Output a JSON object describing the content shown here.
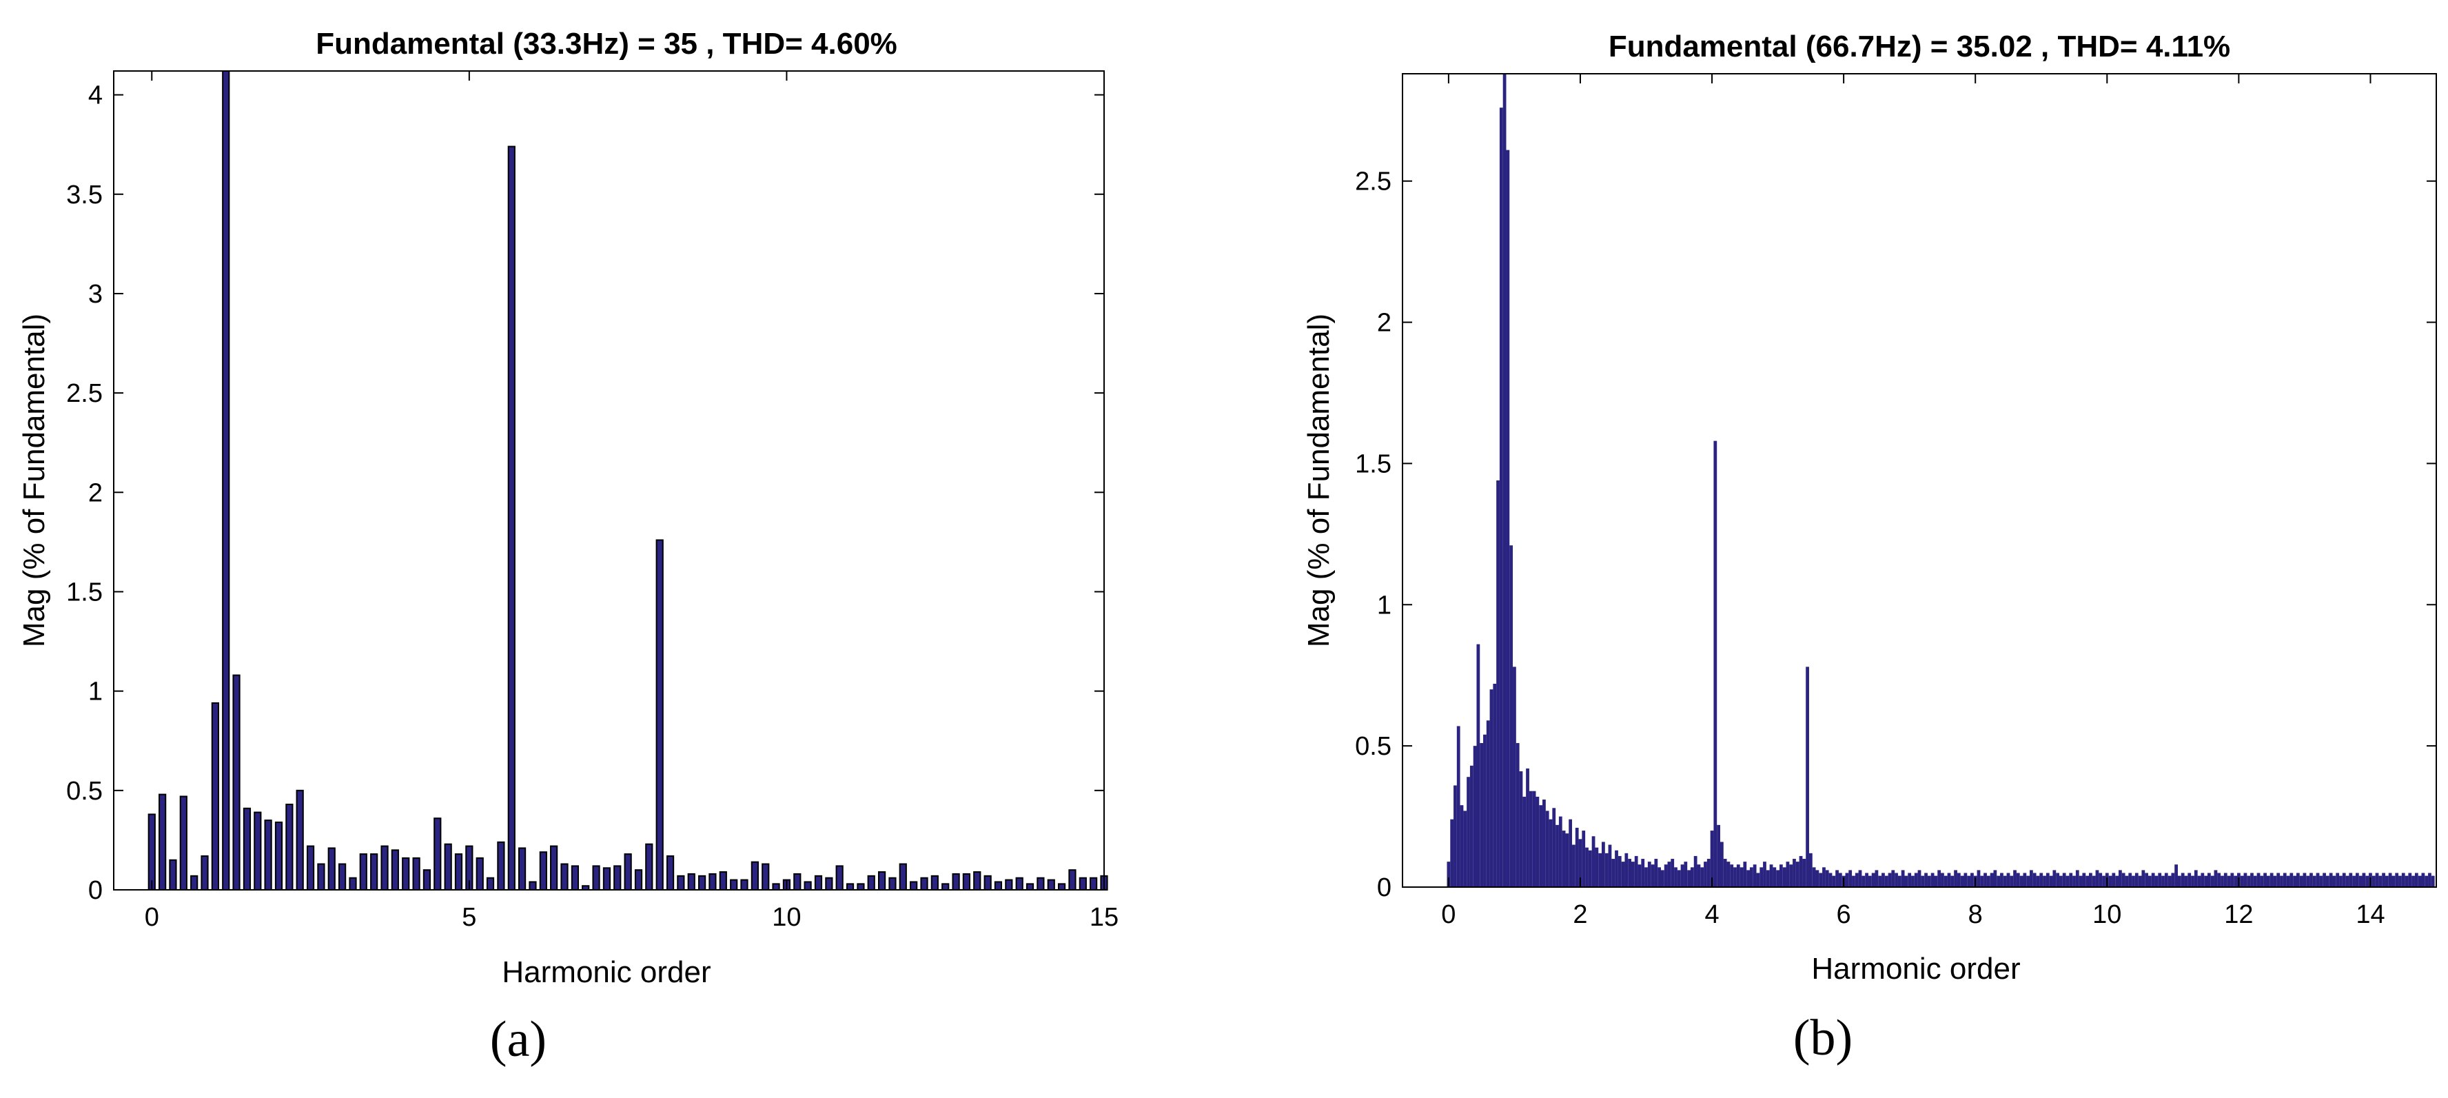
{
  "chart_data": [
    {
      "panel_label": "(a)",
      "type": "bar",
      "title": "Fundamental (33.3Hz) = 35 , THD= 4.60%",
      "xlabel": "Harmonic order",
      "ylabel": "Mag (% of Fundamental)",
      "xlim": [
        -0.6,
        15
      ],
      "ylim": [
        0,
        4.12
      ],
      "xticks": [
        0,
        5,
        10,
        15
      ],
      "xtick_labels": [
        "0",
        "5",
        "10",
        "15"
      ],
      "yticks": [
        0,
        0.5,
        1,
        1.5,
        2,
        2.5,
        3,
        3.5,
        4
      ],
      "ytick_labels": [
        "0",
        "0.5",
        "1",
        "1.5",
        "2",
        "2.5",
        "3",
        "3.5",
        "4"
      ],
      "bar_color": "#2a2380",
      "bar_edge": "#000000",
      "bar_width": 0.1,
      "series": [
        {
          "name": "spectrum",
          "x": [
            0,
            0.167,
            0.333,
            0.5,
            0.667,
            0.833,
            1.0,
            1.167,
            1.333,
            1.5,
            1.667,
            1.833,
            2.0,
            2.167,
            2.333,
            2.5,
            2.667,
            2.833,
            3.0,
            3.167,
            3.333,
            3.5,
            3.667,
            3.833,
            4.0,
            4.167,
            4.333,
            4.5,
            4.667,
            4.833,
            5.0,
            5.167,
            5.333,
            5.5,
            5.667,
            5.833,
            6.0,
            6.167,
            6.333,
            6.5,
            6.667,
            6.833,
            7.0,
            7.167,
            7.333,
            7.5,
            7.667,
            7.833,
            8.0,
            8.167,
            8.333,
            8.5,
            8.667,
            8.833,
            9.0,
            9.167,
            9.333,
            9.5,
            9.667,
            9.833,
            10.0,
            10.167,
            10.333,
            10.5,
            10.667,
            10.833,
            11.0,
            11.167,
            11.333,
            11.5,
            11.667,
            11.833,
            12.0,
            12.167,
            12.333,
            12.5,
            12.667,
            12.833,
            13.0,
            13.167,
            13.333,
            13.5,
            13.667,
            13.833,
            14.0,
            14.167,
            14.333,
            14.5,
            14.667,
            14.833,
            15.0
          ],
          "values": [
            0.38,
            0.48,
            0.15,
            0.47,
            0.07,
            0.17,
            0.94,
            4.12,
            1.08,
            0.41,
            0.39,
            0.35,
            0.34,
            0.43,
            0.5,
            0.22,
            0.13,
            0.21,
            0.13,
            0.06,
            0.18,
            0.18,
            0.22,
            0.2,
            0.16,
            0.16,
            0.1,
            0.36,
            0.23,
            0.18,
            0.22,
            0.16,
            0.06,
            0.24,
            3.74,
            0.21,
            0.04,
            0.19,
            0.22,
            0.13,
            0.12,
            0.02,
            0.12,
            0.11,
            0.12,
            0.18,
            0.1,
            0.23,
            1.76,
            0.17,
            0.07,
            0.08,
            0.07,
            0.08,
            0.09,
            0.05,
            0.05,
            0.14,
            0.13,
            0.03,
            0.05,
            0.08,
            0.04,
            0.07,
            0.06,
            0.12,
            0.03,
            0.03,
            0.07,
            0.09,
            0.06,
            0.13,
            0.04,
            0.06,
            0.07,
            0.03,
            0.08,
            0.08,
            0.09,
            0.07,
            0.04,
            0.05,
            0.06,
            0.03,
            0.06,
            0.05,
            0.03,
            0.1,
            0.06,
            0.06,
            0.07
          ]
        }
      ]
    },
    {
      "panel_label": "(b)",
      "type": "bar",
      "title": "Fundamental (66.7Hz) = 35.02 , THD= 4.11%",
      "xlabel": "Harmonic order",
      "ylabel": "Mag (% of Fundamental)",
      "xlim": [
        -0.7,
        15
      ],
      "ylim": [
        0,
        2.88
      ],
      "xticks": [
        0,
        2,
        4,
        6,
        8,
        10,
        12,
        14
      ],
      "xtick_labels": [
        "0",
        "2",
        "4",
        "6",
        "8",
        "10",
        "12",
        "14"
      ],
      "yticks": [
        0,
        0.5,
        1,
        1.5,
        2,
        2.5
      ],
      "ytick_labels": [
        "0",
        "0.5",
        "1",
        "1.5",
        "2",
        "2.5"
      ],
      "bar_color": "#2a2380",
      "bar_width": 0.05,
      "series": [
        {
          "name": "spectrum",
          "x0": 0,
          "dx": 0.05,
          "values": [
            0.09,
            0.24,
            0.36,
            0.57,
            0.29,
            0.27,
            0.39,
            0.43,
            0.5,
            0.86,
            0.51,
            0.54,
            0.59,
            0.7,
            0.72,
            1.44,
            2.76,
            2.88,
            2.61,
            1.21,
            0.78,
            0.51,
            0.41,
            0.32,
            0.42,
            0.34,
            0.34,
            0.32,
            0.29,
            0.31,
            0.27,
            0.24,
            0.28,
            0.22,
            0.25,
            0.2,
            0.19,
            0.24,
            0.15,
            0.21,
            0.17,
            0.2,
            0.14,
            0.13,
            0.18,
            0.14,
            0.12,
            0.16,
            0.12,
            0.15,
            0.1,
            0.13,
            0.11,
            0.09,
            0.12,
            0.1,
            0.09,
            0.11,
            0.08,
            0.1,
            0.07,
            0.09,
            0.08,
            0.1,
            0.07,
            0.06,
            0.08,
            0.09,
            0.1,
            0.07,
            0.06,
            0.08,
            0.09,
            0.06,
            0.07,
            0.11,
            0.08,
            0.07,
            0.09,
            0.1,
            0.2,
            1.58,
            0.22,
            0.16,
            0.1,
            0.09,
            0.08,
            0.07,
            0.08,
            0.07,
            0.09,
            0.06,
            0.07,
            0.08,
            0.05,
            0.07,
            0.09,
            0.06,
            0.08,
            0.07,
            0.06,
            0.08,
            0.07,
            0.09,
            0.08,
            0.1,
            0.09,
            0.11,
            0.1,
            0.78,
            0.12,
            0.07,
            0.06,
            0.05,
            0.07,
            0.06,
            0.05,
            0.04,
            0.06,
            0.05,
            0.04,
            0.05,
            0.06,
            0.04,
            0.05,
            0.06,
            0.04,
            0.05,
            0.04,
            0.05,
            0.06,
            0.04,
            0.05,
            0.04,
            0.05,
            0.06,
            0.05,
            0.04,
            0.06,
            0.04,
            0.05,
            0.04,
            0.05,
            0.06,
            0.04,
            0.05,
            0.04,
            0.05,
            0.04,
            0.06,
            0.05,
            0.04,
            0.05,
            0.04,
            0.06,
            0.05,
            0.04,
            0.05,
            0.04,
            0.05,
            0.04,
            0.06,
            0.04,
            0.05,
            0.04,
            0.05,
            0.06,
            0.04,
            0.05,
            0.04,
            0.05,
            0.04,
            0.06,
            0.05,
            0.04,
            0.05,
            0.04,
            0.06,
            0.05,
            0.04,
            0.05,
            0.04,
            0.05,
            0.04,
            0.06,
            0.05,
            0.04,
            0.05,
            0.04,
            0.05,
            0.04,
            0.06,
            0.04,
            0.05,
            0.04,
            0.05,
            0.04,
            0.06,
            0.05,
            0.04,
            0.05,
            0.04,
            0.05,
            0.04,
            0.06,
            0.05,
            0.04,
            0.05,
            0.04,
            0.05,
            0.04,
            0.06,
            0.05,
            0.04,
            0.05,
            0.04,
            0.05,
            0.04,
            0.05,
            0.04,
            0.05,
            0.08,
            0.04,
            0.05,
            0.04,
            0.05,
            0.04,
            0.06,
            0.04,
            0.05,
            0.04,
            0.05,
            0.04,
            0.06,
            0.05,
            0.04,
            0.05,
            0.04,
            0.05,
            0.04,
            0.05,
            0.04,
            0.05,
            0.04,
            0.05,
            0.04,
            0.05,
            0.04,
            0.05,
            0.04,
            0.05,
            0.04,
            0.05,
            0.04,
            0.05,
            0.04,
            0.05,
            0.04,
            0.05,
            0.04,
            0.05,
            0.04,
            0.05,
            0.04,
            0.05,
            0.04,
            0.05,
            0.04,
            0.05,
            0.04,
            0.05,
            0.04,
            0.05,
            0.04,
            0.05,
            0.04,
            0.05,
            0.04,
            0.05,
            0.04,
            0.05,
            0.04,
            0.05,
            0.04,
            0.05,
            0.04,
            0.05,
            0.04,
            0.05,
            0.04,
            0.05,
            0.04,
            0.05,
            0.04,
            0.05,
            0.04,
            0.05,
            0.04,
            0.05,
            0.04
          ]
        }
      ]
    }
  ]
}
